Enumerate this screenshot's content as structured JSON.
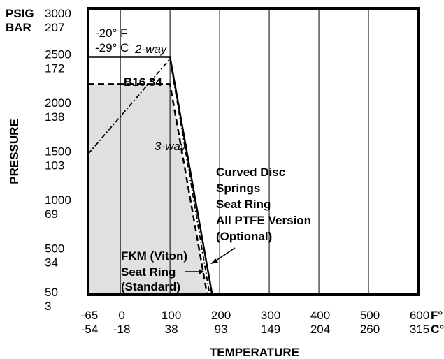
{
  "chart_data": {
    "type": "line",
    "title": "",
    "xlabel": "TEMPERATURE",
    "ylabel": "PRESSURE",
    "x_unit_labels": [
      "F°",
      "C°"
    ],
    "y_unit_labels": [
      "PSIG",
      "BAR"
    ],
    "xlim": [
      -65,
      600
    ],
    "ylim": [
      50,
      3000
    ],
    "grid": true,
    "x_ticks": [
      {
        "value": -65,
        "f": "-65",
        "c": "-54"
      },
      {
        "value": 0,
        "f": "0",
        "c": "-18"
      },
      {
        "value": 100,
        "f": "100",
        "c": "38"
      },
      {
        "value": 200,
        "f": "200",
        "c": "93"
      },
      {
        "value": 300,
        "f": "300",
        "c": "149"
      },
      {
        "value": 400,
        "f": "400",
        "c": "204"
      },
      {
        "value": 500,
        "f": "500",
        "c": "260"
      },
      {
        "value": 600,
        "f": "600",
        "c": "315"
      }
    ],
    "y_ticks": [
      {
        "value": 3000,
        "psig": "3000",
        "bar": "207"
      },
      {
        "value": 2500,
        "psig": "2500",
        "bar": "172"
      },
      {
        "value": 2000,
        "psig": "2000",
        "bar": "138"
      },
      {
        "value": 1500,
        "psig": "1500",
        "bar": "103"
      },
      {
        "value": 1000,
        "psig": "1000",
        "bar": "69"
      },
      {
        "value": 500,
        "psig": "500",
        "bar": "34"
      },
      {
        "value": 50,
        "psig": "50",
        "bar": "3"
      }
    ],
    "series": [
      {
        "name": "2-way",
        "style": "solid",
        "points": [
          [
            -65,
            2500
          ],
          [
            100,
            2500
          ],
          [
            185,
            50
          ]
        ]
      },
      {
        "name": "B16.34",
        "style": "dashed",
        "points": [
          [
            -65,
            2220
          ],
          [
            100,
            2220
          ],
          [
            175,
            50
          ]
        ]
      },
      {
        "name": "3-way",
        "style": "dash-dot",
        "points": [
          [
            -65,
            1500
          ],
          [
            100,
            2480
          ],
          [
            180,
            50
          ]
        ]
      }
    ],
    "shaded_region": [
      [
        -65,
        50
      ],
      [
        -65,
        2220
      ],
      [
        100,
        2220
      ],
      [
        175,
        50
      ]
    ],
    "annotations": {
      "temp_min_f": "-20° F",
      "temp_min_c": "-29° C",
      "two_way": "2-way",
      "b1634": "B16.34",
      "three_way": "3-way",
      "curved_disc": [
        "Curved Disc",
        "Springs",
        "Seat Ring",
        "All PTFE Version",
        "(Optional)"
      ],
      "fkm": [
        "FKM (Viton)",
        "Seat Ring",
        "(Standard)"
      ]
    },
    "colors": {
      "shade": "#e0e0e0",
      "lines": "#000000",
      "grid": "#000000"
    }
  }
}
